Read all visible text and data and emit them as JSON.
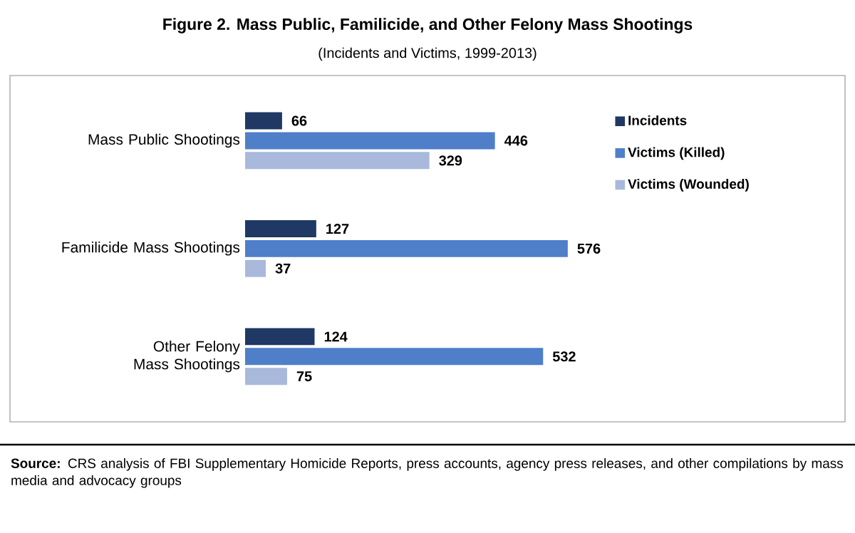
{
  "chart_data": {
    "type": "bar",
    "orientation": "horizontal",
    "title": "Figure 2. Mass Public, Familicide, and Other Felony Mass Shootings",
    "subtitle": "(Incidents and Victims, 1999-2013)",
    "categories": [
      "Mass Public Shootings",
      "Familicide Mass Shootings",
      "Other Felony Mass Shootings"
    ],
    "series": [
      {
        "name": "Incidents",
        "color": "#1f3864",
        "values": [
          66,
          127,
          124
        ]
      },
      {
        "name": "Victims (Killed)",
        "color": "#4f7fc8",
        "values": [
          446,
          576,
          532
        ]
      },
      {
        "name": "Victims (Wounded)",
        "color": "#a9b9dc",
        "values": [
          329,
          37,
          75
        ]
      }
    ],
    "data_labels": true,
    "legend": "right",
    "annotations": [
      "**Source:** CRS analysis of FBI Supplementary Homicide Reports, press accounts, agency press releases, and other compilations by mass media and advocacy groups"
    ]
  }
}
